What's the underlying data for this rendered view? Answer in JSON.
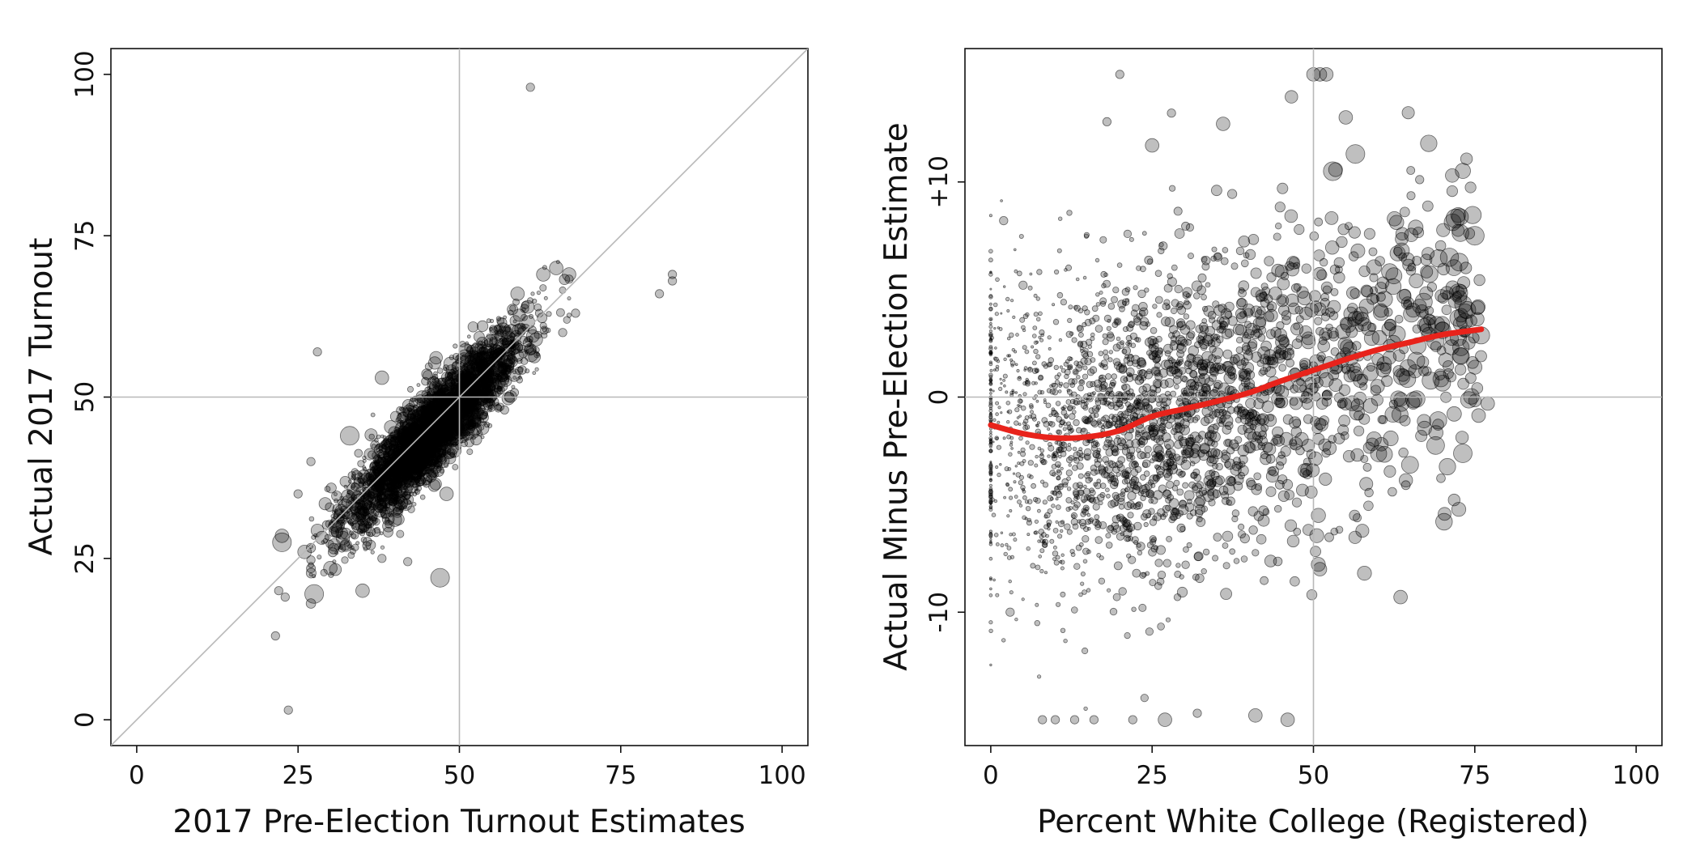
{
  "chart_data": [
    {
      "type": "scatter",
      "title": "",
      "xlabel": "2017 Pre-Election Turnout Estimates",
      "ylabel": "Actual 2017 Turnout",
      "xlim": [
        -4,
        104
      ],
      "ylim": [
        -4,
        104
      ],
      "xticks": [
        0,
        25,
        50,
        75,
        100
      ],
      "yticks": [
        0,
        25,
        50,
        75,
        100
      ],
      "xtick_labels": [
        "0",
        "25",
        "50",
        "75",
        "100"
      ],
      "ytick_labels": [
        "0",
        "25",
        "50",
        "75",
        "100"
      ],
      "reference_lines": {
        "vertical_x": 50,
        "horizontal_y": 50,
        "diagonal": "y = x"
      },
      "grid": false,
      "legend": "none",
      "marker_color": "#000000",
      "marker_opacity": 0.25,
      "generated_cloud": {
        "n": 3800,
        "center": [
          46,
          45
        ],
        "x_sd": 6.5,
        "slope": 1.0,
        "residual_sd": 3.2,
        "x_range": [
          27,
          67
        ]
      },
      "points": [
        {
          "x": 61,
          "y": 98,
          "size": 1
        },
        {
          "x": 81,
          "y": 66,
          "size": 1
        },
        {
          "x": 83,
          "y": 69,
          "size": 1
        },
        {
          "x": 83,
          "y": 68,
          "size": 1
        },
        {
          "x": 28,
          "y": 57,
          "size": 1
        },
        {
          "x": 22.5,
          "y": 28.5,
          "size": 2
        },
        {
          "x": 22.5,
          "y": 27.5,
          "size": 3
        },
        {
          "x": 22,
          "y": 20,
          "size": 1
        },
        {
          "x": 23,
          "y": 19,
          "size": 1
        },
        {
          "x": 21.5,
          "y": 13,
          "size": 1
        },
        {
          "x": 23.5,
          "y": 1.5,
          "size": 1
        },
        {
          "x": 27.5,
          "y": 19.5,
          "size": 3
        },
        {
          "x": 47,
          "y": 22,
          "size": 3
        },
        {
          "x": 25,
          "y": 35,
          "size": 1
        },
        {
          "x": 26,
          "y": 26,
          "size": 2
        },
        {
          "x": 38,
          "y": 25,
          "size": 1
        },
        {
          "x": 42,
          "y": 24.5,
          "size": 1
        },
        {
          "x": 35,
          "y": 20,
          "size": 2
        },
        {
          "x": 30,
          "y": 23.5,
          "size": 2
        },
        {
          "x": 48,
          "y": 35,
          "size": 2
        },
        {
          "x": 57,
          "y": 48,
          "size": 1
        },
        {
          "x": 33,
          "y": 44,
          "size": 3
        },
        {
          "x": 27,
          "y": 40,
          "size": 1
        },
        {
          "x": 38,
          "y": 53,
          "size": 2
        },
        {
          "x": 65,
          "y": 70,
          "size": 2
        },
        {
          "x": 67,
          "y": 69,
          "size": 2
        },
        {
          "x": 63,
          "y": 69,
          "size": 2
        },
        {
          "x": 59,
          "y": 66,
          "size": 2
        },
        {
          "x": 68,
          "y": 63,
          "size": 1
        },
        {
          "x": 66,
          "y": 60,
          "size": 1
        },
        {
          "x": 35,
          "y": 30,
          "size": 2
        },
        {
          "x": 40,
          "y": 31,
          "size": 2
        }
      ]
    },
    {
      "type": "scatter",
      "title": "",
      "xlabel": "Percent White College (Registered)",
      "ylabel": "Actual Minus Pre-Election Estimate",
      "xlim": [
        -4,
        104
      ],
      "ylim": [
        -16.2,
        16.2
      ],
      "xticks": [
        0,
        25,
        50,
        75,
        100
      ],
      "yticks": [
        -10,
        0,
        10
      ],
      "xtick_labels": [
        "0",
        "25",
        "50",
        "75",
        "100"
      ],
      "ytick_labels": [
        "-10",
        "0",
        "+10"
      ],
      "reference_lines": {
        "vertical_x": 50,
        "horizontal_y": 0
      },
      "grid": false,
      "legend": "none",
      "marker_color": "#000000",
      "marker_opacity": 0.25,
      "generated_cloud": {
        "n": 2500,
        "x_range": [
          0,
          76
        ],
        "x_peak": 22,
        "residual_sd": 3.6
      },
      "points": [
        {
          "x": 50,
          "y": 15,
          "size": 2
        },
        {
          "x": 51,
          "y": 15,
          "size": 2
        },
        {
          "x": 52,
          "y": 15,
          "size": 2
        },
        {
          "x": 41,
          "y": -14.8,
          "size": 2
        },
        {
          "x": 46,
          "y": -15,
          "size": 2
        },
        {
          "x": 27,
          "y": -15,
          "size": 2
        },
        {
          "x": 32,
          "y": -14.7,
          "size": 1
        },
        {
          "x": 63.5,
          "y": -9.3,
          "size": 2
        },
        {
          "x": 51,
          "y": -8,
          "size": 2
        },
        {
          "x": 55,
          "y": 13,
          "size": 2
        },
        {
          "x": 53,
          "y": 10.5,
          "size": 3
        },
        {
          "x": 56.5,
          "y": 11.3,
          "size": 3
        },
        {
          "x": 28,
          "y": 13.2,
          "size": 1
        },
        {
          "x": 36,
          "y": 12.7,
          "size": 2
        },
        {
          "x": 18,
          "y": 12.8,
          "size": 1
        },
        {
          "x": 20,
          "y": 15,
          "size": 1
        },
        {
          "x": 25,
          "y": 11.7,
          "size": 2
        },
        {
          "x": 71.5,
          "y": 10.3,
          "size": 2
        },
        {
          "x": 72,
          "y": 8.3,
          "size": 3
        },
        {
          "x": 75,
          "y": 7.5,
          "size": 3
        },
        {
          "x": 77,
          "y": -0.3,
          "size": 2
        },
        {
          "x": 8,
          "y": -15,
          "size": 1
        },
        {
          "x": 10,
          "y": -15,
          "size": 1
        },
        {
          "x": 13,
          "y": -15,
          "size": 1
        },
        {
          "x": 16,
          "y": -15,
          "size": 1
        },
        {
          "x": 22,
          "y": -15,
          "size": 1
        },
        {
          "x": 3,
          "y": -10,
          "size": 1
        },
        {
          "x": 2,
          "y": 8.2,
          "size": 1
        },
        {
          "x": 5,
          "y": 5.2,
          "size": 1
        }
      ],
      "trend_line": {
        "name": "",
        "color": "#e8231b",
        "x": [
          0,
          5,
          10,
          15,
          20,
          25,
          30,
          35,
          40,
          45,
          50,
          55,
          60,
          65,
          70,
          76
        ],
        "y": [
          -1.3,
          -1.7,
          -1.9,
          -1.85,
          -1.55,
          -0.9,
          -0.55,
          -0.2,
          0.2,
          0.75,
          1.25,
          1.75,
          2.2,
          2.55,
          2.9,
          3.15
        ]
      }
    }
  ]
}
